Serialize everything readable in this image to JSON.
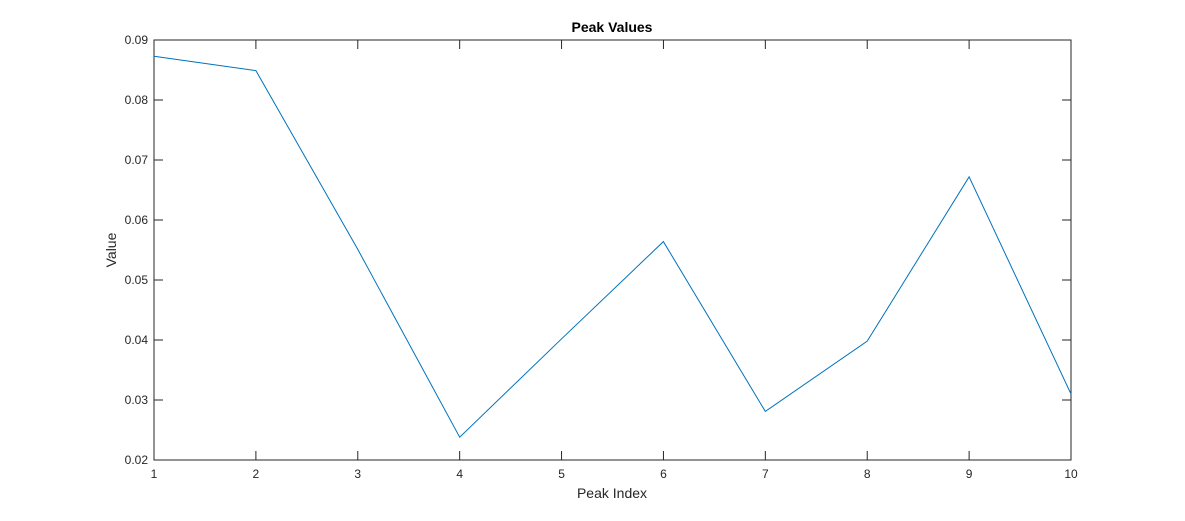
{
  "chart_data": {
    "type": "line",
    "title": "Peak Values",
    "xlabel": "Peak Index",
    "ylabel": "Value",
    "xlim": [
      1,
      10
    ],
    "ylim": [
      0.02,
      0.09
    ],
    "x_ticks": [
      "1",
      "2",
      "3",
      "4",
      "5",
      "6",
      "7",
      "8",
      "9",
      "10"
    ],
    "y_ticks": [
      "0.02",
      "0.03",
      "0.04",
      "0.05",
      "0.06",
      "0.07",
      "0.08",
      "0.09"
    ],
    "grid": false,
    "series": [
      {
        "x": [
          1,
          2,
          3,
          4,
          5,
          6,
          7,
          8,
          9,
          10
        ],
        "values": [
          0.0873,
          0.0849,
          0.0551,
          0.0238,
          0.0402,
          0.0564,
          0.0281,
          0.0398,
          0.0672,
          0.031
        ],
        "color": "#0072BD"
      }
    ]
  }
}
